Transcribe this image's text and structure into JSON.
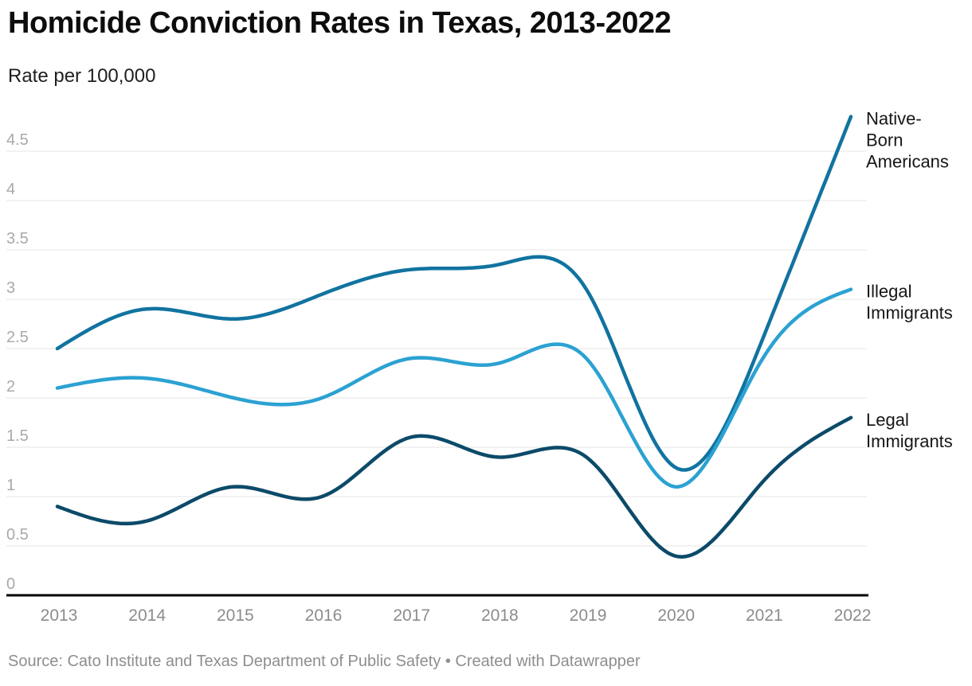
{
  "header": {
    "title": "Homicide Conviction Rates in Texas, 2013-2022",
    "subtitle": "Rate per 100,000"
  },
  "footer": {
    "source": "Source: Cato Institute and Texas Department of Public Safety • Created with Datawrapper"
  },
  "chart_data": {
    "type": "line",
    "title": "Homicide Conviction Rates in Texas, 2013-2022",
    "subtitle": "Rate per 100,000",
    "x": [
      2013,
      2014,
      2015,
      2016,
      2017,
      2018,
      2019,
      2020,
      2021,
      2022
    ],
    "series": [
      {
        "name": "Native-Born Americans",
        "label_lines": [
          "Native-",
          "Born",
          "Americans"
        ],
        "color": "#1173a0",
        "values": [
          2.5,
          2.9,
          2.8,
          3.05,
          3.3,
          3.35,
          3.1,
          1.3,
          2.6,
          4.85
        ]
      },
      {
        "name": "Illegal Immigrants",
        "label_lines": [
          "Illegal",
          "Immigrants"
        ],
        "color": "#2ba2d2",
        "values": [
          2.1,
          2.2,
          2.0,
          2.0,
          2.4,
          2.35,
          2.4,
          1.1,
          2.4,
          3.1
        ]
      },
      {
        "name": "Legal Immigrants",
        "label_lines": [
          "Legal",
          "Immigrants"
        ],
        "color": "#0c4a69",
        "values": [
          0.9,
          0.75,
          1.1,
          1.0,
          1.6,
          1.4,
          1.4,
          0.4,
          1.15,
          1.8
        ]
      }
    ],
    "ylabel": "Rate per 100,000",
    "xlabel": "",
    "ylim": [
      0,
      5
    ],
    "y_ticks": [
      0,
      0.5,
      1,
      1.5,
      2,
      2.5,
      3,
      3.5,
      4,
      4.5
    ],
    "grid": "horizontal",
    "curve": "natural-spline",
    "legend_position": "labels-at-line-ends-right",
    "axis_color": "#000000",
    "gridline_color": "#e4e4e4"
  }
}
